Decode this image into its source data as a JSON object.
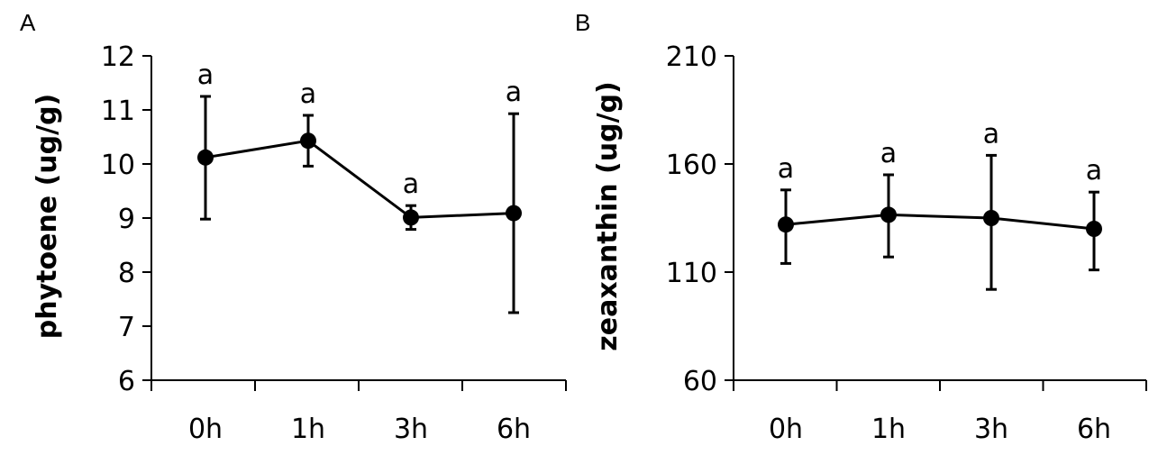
{
  "chart_data": [
    {
      "type": "line",
      "panel_label": "A",
      "ylabel": "phytoene (ug/g)",
      "xlabel": "",
      "categories": [
        "0h",
        "1h",
        "3h",
        "6h"
      ],
      "series": [
        {
          "values": [
            10.12,
            10.43,
            9.01,
            9.09
          ],
          "error_upper": [
            11.25,
            10.9,
            9.23,
            10.93
          ],
          "error_lower": [
            8.98,
            9.96,
            8.79,
            7.25
          ],
          "labels": [
            "a",
            "a",
            "a",
            "a"
          ]
        }
      ],
      "ylim": [
        6,
        12
      ],
      "yticks": [
        6,
        7,
        8,
        9,
        10,
        11,
        12
      ],
      "grid": false,
      "color": "#000000"
    },
    {
      "type": "line",
      "panel_label": "B",
      "ylabel": "zeaxanthin (ug/g)",
      "xlabel": "",
      "categories": [
        "0h",
        "1h",
        "3h",
        "6h"
      ],
      "series": [
        {
          "values": [
            132,
            136.5,
            135,
            130
          ],
          "error_upper": [
            148,
            155,
            164,
            147
          ],
          "error_lower": [
            114,
            117,
            102,
            111
          ],
          "labels": [
            "a",
            "a",
            "a",
            "a"
          ]
        }
      ],
      "ylim": [
        60,
        210
      ],
      "yticks": [
        60,
        110,
        160,
        210
      ],
      "grid": false,
      "color": "#000000"
    }
  ]
}
